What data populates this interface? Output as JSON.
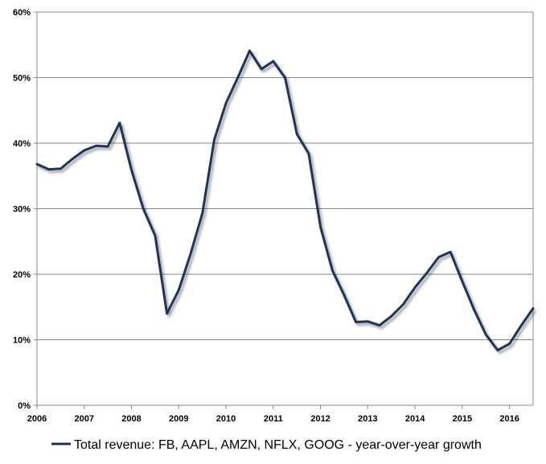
{
  "chart_data": {
    "type": "line",
    "title": "",
    "xlabel": "",
    "ylabel": "",
    "xlim": [
      2006,
      2016.5
    ],
    "ylim": [
      0,
      60
    ],
    "grid": true,
    "legend_position": "bottom",
    "y_ticks": [
      "0%",
      "10%",
      "20%",
      "30%",
      "40%",
      "50%",
      "60%"
    ],
    "x_ticks": [
      "2006",
      "2007",
      "2008",
      "2009",
      "2010",
      "2011",
      "2012",
      "2013",
      "2014",
      "2015",
      "2016"
    ],
    "series": [
      {
        "name": "Total revenue: FB, AAPL, AMZN, NFLX, GOOG - year-over-year growth",
        "color": "#1f3558",
        "x": [
          2006.0,
          2006.25,
          2006.5,
          2006.75,
          2007.0,
          2007.25,
          2007.5,
          2007.75,
          2008.0,
          2008.25,
          2008.5,
          2008.75,
          2009.0,
          2009.25,
          2009.5,
          2009.75,
          2010.0,
          2010.25,
          2010.5,
          2010.75,
          2011.0,
          2011.25,
          2011.5,
          2011.75,
          2012.0,
          2012.25,
          2012.5,
          2012.75,
          2013.0,
          2013.25,
          2013.5,
          2013.75,
          2014.0,
          2014.25,
          2014.5,
          2014.75,
          2015.0,
          2015.25,
          2015.5,
          2015.75,
          2016.0,
          2016.25,
          2016.5
        ],
        "y": [
          36.8,
          36.0,
          36.1,
          37.6,
          38.9,
          39.6,
          39.5,
          43.1,
          35.9,
          30.0,
          25.9,
          14.0,
          17.6,
          23.1,
          29.3,
          40.5,
          46.1,
          50.0,
          54.1,
          51.3,
          52.5,
          50.0,
          41.4,
          38.4,
          27.2,
          20.6,
          16.8,
          12.7,
          12.8,
          12.2,
          13.6,
          15.4,
          18.0,
          20.2,
          22.6,
          23.4,
          18.9,
          14.6,
          10.8,
          8.4,
          9.4,
          12.2,
          14.8
        ]
      }
    ]
  }
}
